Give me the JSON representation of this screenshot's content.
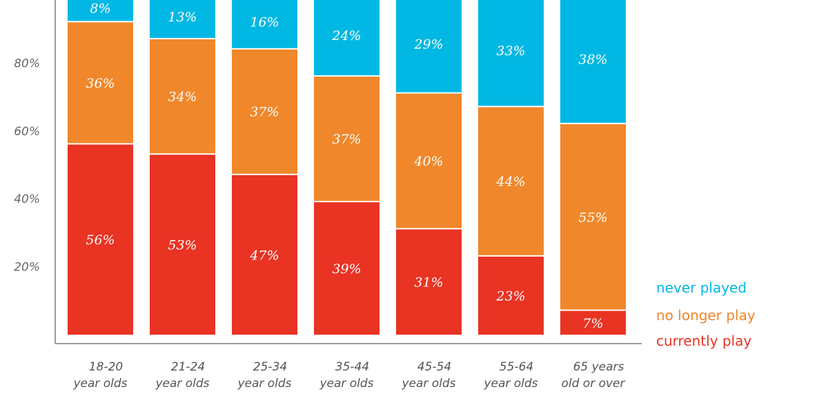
{
  "chart_data": {
    "type": "bar",
    "stacked": true,
    "categories": [
      [
        "18-20",
        "year olds"
      ],
      [
        "21-24",
        "year olds"
      ],
      [
        "25-34",
        "year olds"
      ],
      [
        "35-44",
        "year olds"
      ],
      [
        "45-54",
        "year olds"
      ],
      [
        "55-64",
        "year olds"
      ],
      [
        "65 years",
        "old or over"
      ]
    ],
    "series": [
      {
        "name": "currently play",
        "color": "#e93323",
        "values": [
          56,
          53,
          47,
          39,
          31,
          23,
          7
        ]
      },
      {
        "name": "no longer play",
        "color": "#f0872b",
        "values": [
          36,
          34,
          37,
          37,
          40,
          44,
          55
        ]
      },
      {
        "name": "never played",
        "color": "#00b8e3",
        "values": [
          8,
          13,
          16,
          24,
          29,
          33,
          38
        ]
      }
    ],
    "legend_order": [
      "never played",
      "no longer play",
      "currently play"
    ],
    "yticks": [
      20,
      40,
      60,
      80
    ],
    "ylim": [
      0,
      100
    ],
    "value_suffix": "%",
    "legend_position": "bottom-right"
  }
}
